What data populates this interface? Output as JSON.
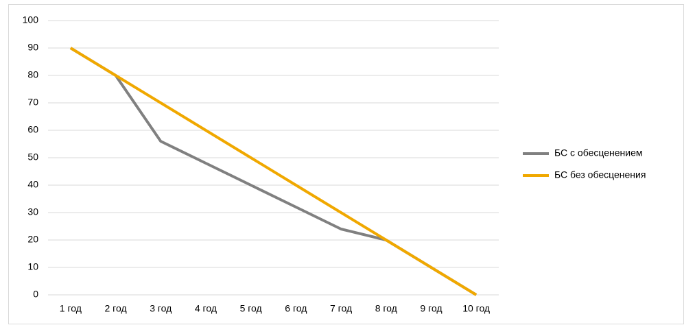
{
  "chart_data": {
    "type": "line",
    "categories": [
      "1 год",
      "2 год",
      "3 год",
      "4 год",
      "5 год",
      "6 год",
      "7 год",
      "8 год",
      "9 год",
      "10 год"
    ],
    "series": [
      {
        "name": "БС с обесценением",
        "color": "#808080",
        "values": [
          90,
          80,
          56,
          48,
          40,
          32,
          24,
          20,
          10,
          0
        ]
      },
      {
        "name": "БС без обесценения",
        "color": "#f0a800",
        "values": [
          90,
          80,
          70,
          60,
          50,
          40,
          30,
          20,
          10,
          0
        ]
      }
    ],
    "ylim": [
      0,
      100
    ],
    "yticks": [
      0,
      10,
      20,
      30,
      40,
      50,
      60,
      70,
      80,
      90,
      100
    ],
    "grid": true,
    "legend": "right"
  }
}
